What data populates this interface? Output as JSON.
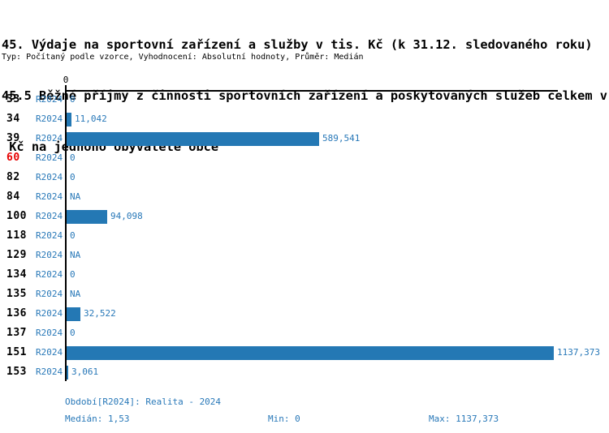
{
  "title": {
    "line1": "45. Výdaje na sportovní zařízení a služby v tis. Kč (k 31.12. sledovaného roku)",
    "line2": "45.5 Běžné příjmy z činnosti sportovních zařízení a poskytovaných služeb celkem v",
    "line3": " Kč na jednoho obyvatele obce",
    "meta": "Typ: Počítaný podle vzorce, Vyhodnocení: Absolutní hodnoty, Průměr: Medián"
  },
  "chart_data": {
    "type": "bar",
    "orientation": "horizontal",
    "axis_tick_label": "0",
    "series_label": "R2024",
    "categories": [
      "33",
      "34",
      "39",
      "60",
      "82",
      "84",
      "100",
      "118",
      "129",
      "134",
      "135",
      "136",
      "137",
      "151",
      "153"
    ],
    "values": [
      0,
      11.042,
      589.541,
      0,
      0,
      null,
      94.098,
      0,
      null,
      0,
      null,
      32.522,
      0,
      1137.373,
      3.061
    ],
    "value_labels": [
      "0",
      "11,042",
      "589,541",
      "0",
      "0",
      "NA",
      "94,098",
      "0",
      "NA",
      "0",
      "NA",
      "32,522",
      "0",
      "1137,373",
      "3,061"
    ],
    "highlighted_category": "60",
    "xlim": [
      0,
      1137.373
    ],
    "grid": false,
    "legend": false,
    "bar_color": "#2478b4",
    "label_color": "#2878b8",
    "highlight_color": "#e60000"
  },
  "footer": {
    "period": "Období[R2024]: Realita - 2024",
    "median": "Medián: 1,53",
    "min": "Min: 0",
    "max": "Max: 1137,373"
  }
}
